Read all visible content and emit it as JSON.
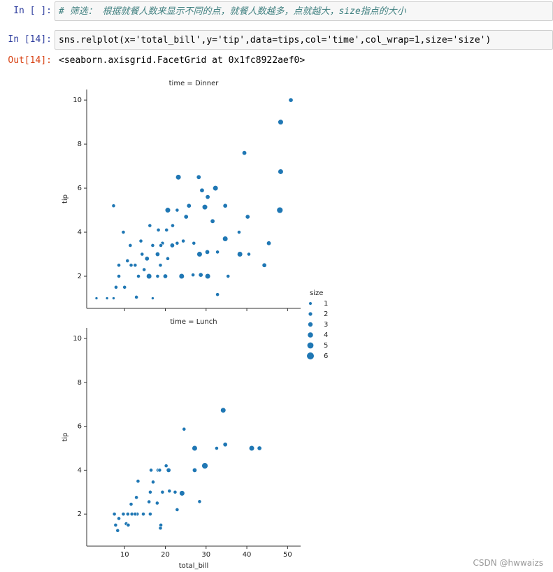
{
  "cells": [
    {
      "prompt": "In  [ ]:",
      "source": "# 筛选： 根据就餐人数来显示不同的点，就餐人数越多，点就越大，size指点的大小"
    },
    {
      "prompt": "In  [14]:",
      "source": "sns.relplot(x='total_bill',y='tip',data=tips,col='time',col_wrap=1,size='size')"
    }
  ],
  "output": {
    "prompt": "Out[14]:",
    "text": "<seaborn.axisgrid.FacetGrid at 0x1fc8922aef0>"
  },
  "legend": {
    "title": "size",
    "sizes": [
      1,
      2,
      3,
      4,
      5,
      6
    ]
  },
  "chart_data": [
    {
      "type": "scatter",
      "title": "time = Dinner",
      "y_label": "tip",
      "color": "#1f77b4",
      "x": [
        50.8,
        48.3,
        39.4,
        48.3,
        48.1,
        23.2,
        28.2,
        29.0,
        32.3,
        7.3,
        20.6,
        22.9,
        25.8,
        29.7,
        34.7,
        40.2,
        30.4,
        9.7,
        16.2,
        25.1,
        31.6,
        38.1,
        45.4,
        44.3,
        38.3,
        40.5,
        32.8,
        34.7,
        30.3,
        28.4,
        27.0,
        24.0,
        26.8,
        28.7,
        30.4,
        32.8,
        35.4,
        3.1,
        5.7,
        7.3,
        8.6,
        10.0,
        11.4,
        12.6,
        14.3,
        15.5,
        16.9,
        18.1,
        19.3,
        20.6,
        21.7,
        22.9,
        24.4,
        13.4,
        16.0,
        18.1,
        20.0,
        11.6,
        12.9,
        16.9,
        14.0,
        18.3,
        20.3,
        21.8,
        10.7,
        14.8,
        18.8,
        7.9,
        18.9,
        8.6
      ],
      "y": [
        10,
        9.0,
        7.6,
        6.75,
        5.0,
        6.5,
        6.5,
        5.9,
        6.0,
        5.2,
        5.0,
        5.0,
        5.2,
        5.14,
        5.2,
        4.7,
        5.6,
        4.0,
        4.3,
        4.7,
        4.5,
        4.0,
        3.5,
        2.5,
        3.0,
        3.0,
        3.1,
        3.7,
        3.1,
        3.0,
        3.5,
        2.0,
        2.06,
        2.06,
        2.0,
        1.17,
        2.0,
        1.0,
        1.0,
        1.0,
        2.0,
        1.5,
        3.4,
        2.5,
        3.0,
        2.8,
        3.4,
        3.0,
        3.5,
        2.8,
        3.4,
        3.5,
        3.6,
        2.0,
        2.0,
        2.0,
        2.0,
        2.5,
        1.05,
        1.0,
        3.6,
        4.1,
        4.1,
        4.3,
        2.7,
        2.3,
        2.5,
        1.5,
        3.4,
        2.5
      ],
      "size": [
        3,
        4,
        3,
        4,
        5,
        4,
        3,
        3,
        4,
        2,
        4,
        2,
        3,
        4,
        3,
        3,
        3,
        2,
        2,
        3,
        3,
        2,
        3,
        3,
        4,
        2,
        2,
        4,
        3,
        4,
        2,
        4,
        2,
        3,
        4,
        2,
        2,
        1,
        1,
        1,
        2,
        2,
        2,
        2,
        2,
        3,
        2,
        3,
        2,
        2,
        3,
        2,
        2,
        2,
        4,
        2,
        3,
        2,
        2,
        1,
        2,
        2,
        2,
        2,
        2,
        2,
        2,
        2,
        2,
        2
      ],
      "xlim": [
        0.7,
        53.2
      ],
      "xticks": [
        10,
        20,
        30,
        40,
        50
      ],
      "ylim": [
        0.54,
        10.48
      ],
      "yticks": [
        2,
        4,
        6,
        8,
        10
      ]
    },
    {
      "type": "scatter",
      "title": "time = Lunch",
      "x_label": "total_bill",
      "y_label": "tip",
      "color": "#1f77b4",
      "x": [
        34.2,
        24.6,
        27.2,
        34.7,
        32.6,
        41.2,
        43.1,
        29.7,
        27.2,
        16.5,
        18.2,
        20.2,
        20.8,
        18.6,
        22.4,
        24.1,
        28.4,
        22.9,
        13.3,
        17.0,
        16.3,
        19.3,
        21.0,
        7.5,
        8.6,
        9.7,
        10.8,
        11.8,
        13.1,
        14.6,
        16.3,
        10.4,
        7.8,
        8.3,
        10.9,
        12.6,
        12.9,
        11.6,
        18.9,
        18.8,
        16.0,
        18.0
      ],
      "y": [
        6.73,
        5.87,
        5.0,
        5.17,
        5.0,
        5.0,
        5.0,
        4.2,
        4.0,
        4.0,
        4.0,
        4.2,
        4.0,
        4.0,
        3.0,
        2.95,
        2.57,
        2.2,
        3.5,
        3.46,
        3.0,
        3.0,
        3.05,
        2.0,
        1.8,
        2.0,
        2.0,
        2.0,
        2.0,
        2.0,
        2.0,
        1.56,
        1.5,
        1.25,
        1.5,
        2.0,
        2.76,
        2.45,
        1.5,
        1.36,
        2.56,
        2.5
      ],
      "size": [
        4,
        2,
        4,
        3,
        2,
        4,
        3,
        5,
        3,
        2,
        2,
        2,
        3,
        2,
        2,
        4,
        2,
        2,
        2,
        2,
        2,
        2,
        2,
        2,
        2,
        2,
        2,
        2,
        2,
        2,
        2,
        2,
        2,
        2,
        2,
        2,
        2,
        2,
        2,
        2,
        2,
        2
      ],
      "xlim": [
        0.7,
        53.2
      ],
      "xticks": [
        10,
        20,
        30,
        40,
        50
      ],
      "ylim": [
        0.54,
        10.48
      ],
      "yticks": [
        2,
        4,
        6,
        8,
        10
      ]
    }
  ],
  "watermark": "CSDN @hwwaizs"
}
